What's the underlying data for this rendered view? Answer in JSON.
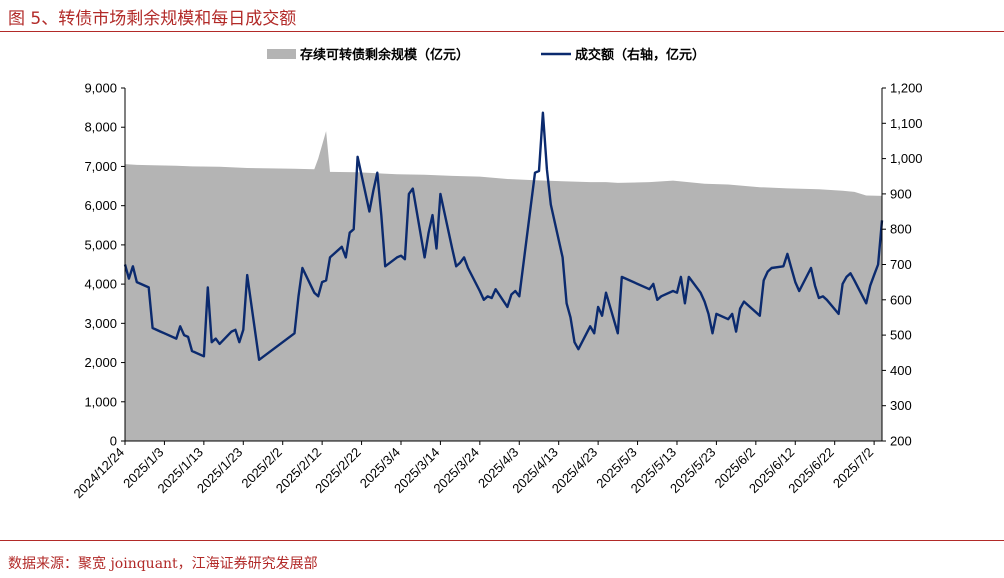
{
  "figure": {
    "title": "图 5、转债市场剩余规模和每日成交额",
    "source": "数据来源：聚宽 joinquant，江海证券研究发展部"
  },
  "colors": {
    "area": "#b4b4b4",
    "line": "#0b2a6e",
    "accent": "#b22a28"
  },
  "chart_data": {
    "type": "area+line",
    "title": "",
    "legend_position": "top-center",
    "grid": false,
    "x_tick_labels": [
      "2024/12/24",
      "2025/1/3",
      "2025/1/13",
      "2025/1/23",
      "2025/2/2",
      "2025/2/12",
      "2025/2/22",
      "2025/3/4",
      "2025/3/14",
      "2025/3/24",
      "2025/4/3",
      "2025/4/13",
      "2025/4/23",
      "2025/5/3",
      "2025/5/13",
      "2025/5/23",
      "2025/6/2",
      "2025/6/12",
      "2025/6/22",
      "2025/7/2"
    ],
    "x_range": [
      "2024/12/24",
      "2025/7/4"
    ],
    "left_axis": {
      "ylim": [
        0,
        9000
      ],
      "ticks": [
        "0",
        "1,000",
        "2,000",
        "3,000",
        "4,000",
        "5,000",
        "6,000",
        "7,000",
        "8,000",
        "9,000"
      ]
    },
    "right_axis": {
      "ylim": [
        200,
        1200
      ],
      "ticks": [
        "200",
        "300",
        "400",
        "500",
        "600",
        "700",
        "800",
        "900",
        "1,000",
        "1,100",
        "1,200"
      ]
    },
    "series": [
      {
        "name": "存续可转债剩余规模（亿元）",
        "type": "area",
        "axis": "left",
        "points": [
          [
            "2024/12/24",
            7060
          ],
          [
            "2024/12/27",
            7040
          ],
          [
            "2024/12/31",
            7030
          ],
          [
            "2025/1/6",
            7020
          ],
          [
            "2025/1/10",
            7000
          ],
          [
            "2025/1/17",
            6990
          ],
          [
            "2025/1/24",
            6960
          ],
          [
            "2025/1/30",
            6950
          ],
          [
            "2025/2/5",
            6940
          ],
          [
            "2025/2/10",
            6930
          ],
          [
            "2025/2/11",
            7200
          ],
          [
            "2025/2/13",
            7900
          ],
          [
            "2025/2/14",
            6860
          ],
          [
            "2025/2/21",
            6850
          ],
          [
            "2025/3/3",
            6800
          ],
          [
            "2025/3/10",
            6790
          ],
          [
            "2025/3/17",
            6760
          ],
          [
            "2025/3/24",
            6740
          ],
          [
            "2025/3/31",
            6680
          ],
          [
            "2025/4/7",
            6650
          ],
          [
            "2025/4/14",
            6620
          ],
          [
            "2025/4/21",
            6600
          ],
          [
            "2025/4/25",
            6600
          ],
          [
            "2025/4/28",
            6580
          ],
          [
            "2025/5/6",
            6600
          ],
          [
            "2025/5/12",
            6640
          ],
          [
            "2025/5/20",
            6560
          ],
          [
            "2025/5/26",
            6540
          ],
          [
            "2025/6/3",
            6470
          ],
          [
            "2025/6/10",
            6440
          ],
          [
            "2025/6/18",
            6420
          ],
          [
            "2025/6/24",
            6380
          ],
          [
            "2025/6/27",
            6350
          ],
          [
            "2025/6/30",
            6260
          ],
          [
            "2025/7/4",
            6250
          ]
        ]
      },
      {
        "name": "成交额（右轴，亿元）",
        "type": "line",
        "axis": "right",
        "points": [
          [
            "2024/12/24",
            700
          ],
          [
            "2024/12/25",
            660
          ],
          [
            "2024/12/26",
            695
          ],
          [
            "2024/12/27",
            650
          ],
          [
            "2024/12/30",
            635
          ],
          [
            "2024/12/31",
            520
          ],
          [
            "2025/1/2",
            510
          ],
          [
            "2025/1/3",
            505
          ],
          [
            "2025/1/6",
            490
          ],
          [
            "2025/1/7",
            525
          ],
          [
            "2025/1/8",
            500
          ],
          [
            "2025/1/9",
            495
          ],
          [
            "2025/1/10",
            455
          ],
          [
            "2025/1/13",
            440
          ],
          [
            "2025/1/14",
            635
          ],
          [
            "2025/1/15",
            480
          ],
          [
            "2025/1/16",
            490
          ],
          [
            "2025/1/17",
            475
          ],
          [
            "2025/1/20",
            510
          ],
          [
            "2025/1/21",
            515
          ],
          [
            "2025/1/22",
            480
          ],
          [
            "2025/1/23",
            515
          ],
          [
            "2025/1/24",
            670
          ],
          [
            "2025/1/27",
            430
          ],
          [
            "2025/2/5",
            505
          ],
          [
            "2025/2/6",
            610
          ],
          [
            "2025/2/7",
            690
          ],
          [
            "2025/2/10",
            620
          ],
          [
            "2025/2/11",
            610
          ],
          [
            "2025/2/12",
            650
          ],
          [
            "2025/2/13",
            655
          ],
          [
            "2025/2/14",
            720
          ],
          [
            "2025/2/17",
            750
          ],
          [
            "2025/2/18",
            720
          ],
          [
            "2025/2/19",
            790
          ],
          [
            "2025/2/20",
            800
          ],
          [
            "2025/2/21",
            1005
          ],
          [
            "2025/2/24",
            850
          ],
          [
            "2025/2/25",
            910
          ],
          [
            "2025/2/26",
            960
          ],
          [
            "2025/2/27",
            840
          ],
          [
            "2025/2/28",
            695
          ],
          [
            "2025/3/3",
            720
          ],
          [
            "2025/3/4",
            725
          ],
          [
            "2025/3/5",
            715
          ],
          [
            "2025/3/6",
            900
          ],
          [
            "2025/3/7",
            915
          ],
          [
            "2025/3/10",
            720
          ],
          [
            "2025/3/11",
            790
          ],
          [
            "2025/3/12",
            840
          ],
          [
            "2025/3/13",
            745
          ],
          [
            "2025/3/14",
            900
          ],
          [
            "2025/3/17",
            745
          ],
          [
            "2025/3/18",
            695
          ],
          [
            "2025/3/19",
            705
          ],
          [
            "2025/3/20",
            720
          ],
          [
            "2025/3/21",
            690
          ],
          [
            "2025/3/24",
            625
          ],
          [
            "2025/3/25",
            600
          ],
          [
            "2025/3/26",
            610
          ],
          [
            "2025/3/27",
            605
          ],
          [
            "2025/3/28",
            630
          ],
          [
            "2025/3/31",
            580
          ],
          [
            "2025/4/1",
            615
          ],
          [
            "2025/4/2",
            625
          ],
          [
            "2025/4/3",
            610
          ],
          [
            "2025/4/7",
            960
          ],
          [
            "2025/4/8",
            965
          ],
          [
            "2025/4/9",
            1130
          ],
          [
            "2025/4/10",
            970
          ],
          [
            "2025/4/11",
            870
          ],
          [
            "2025/4/14",
            720
          ],
          [
            "2025/4/15",
            590
          ],
          [
            "2025/4/16",
            550
          ],
          [
            "2025/4/17",
            480
          ],
          [
            "2025/4/18",
            460
          ],
          [
            "2025/4/21",
            525
          ],
          [
            "2025/4/22",
            505
          ],
          [
            "2025/4/23",
            580
          ],
          [
            "2025/4/24",
            555
          ],
          [
            "2025/4/25",
            620
          ],
          [
            "2025/4/28",
            505
          ],
          [
            "2025/4/29",
            665
          ],
          [
            "2025/5/6",
            630
          ],
          [
            "2025/5/7",
            645
          ],
          [
            "2025/5/8",
            600
          ],
          [
            "2025/5/9",
            610
          ],
          [
            "2025/5/12",
            625
          ],
          [
            "2025/5/13",
            620
          ],
          [
            "2025/5/14",
            665
          ],
          [
            "2025/5/15",
            590
          ],
          [
            "2025/5/16",
            665
          ],
          [
            "2025/5/19",
            620
          ],
          [
            "2025/5/20",
            595
          ],
          [
            "2025/5/21",
            560
          ],
          [
            "2025/5/22",
            505
          ],
          [
            "2025/5/23",
            560
          ],
          [
            "2025/5/26",
            545
          ],
          [
            "2025/5/27",
            560
          ],
          [
            "2025/5/28",
            510
          ],
          [
            "2025/5/29",
            575
          ],
          [
            "2025/5/30",
            595
          ],
          [
            "2025/6/3",
            555
          ],
          [
            "2025/6/4",
            655
          ],
          [
            "2025/6/5",
            680
          ],
          [
            "2025/6/6",
            690
          ],
          [
            "2025/6/9",
            695
          ],
          [
            "2025/6/10",
            730
          ],
          [
            "2025/6/11",
            690
          ],
          [
            "2025/6/12",
            650
          ],
          [
            "2025/6/13",
            625
          ],
          [
            "2025/6/16",
            690
          ],
          [
            "2025/6/17",
            640
          ],
          [
            "2025/6/18",
            605
          ],
          [
            "2025/6/19",
            610
          ],
          [
            "2025/6/20",
            600
          ],
          [
            "2025/6/23",
            560
          ],
          [
            "2025/6/24",
            645
          ],
          [
            "2025/6/25",
            665
          ],
          [
            "2025/6/26",
            675
          ],
          [
            "2025/6/27",
            655
          ],
          [
            "2025/6/30",
            590
          ],
          [
            "2025/7/1",
            640
          ],
          [
            "2025/7/2",
            670
          ],
          [
            "2025/7/3",
            700
          ],
          [
            "2025/7/4",
            825
          ]
        ]
      }
    ]
  }
}
